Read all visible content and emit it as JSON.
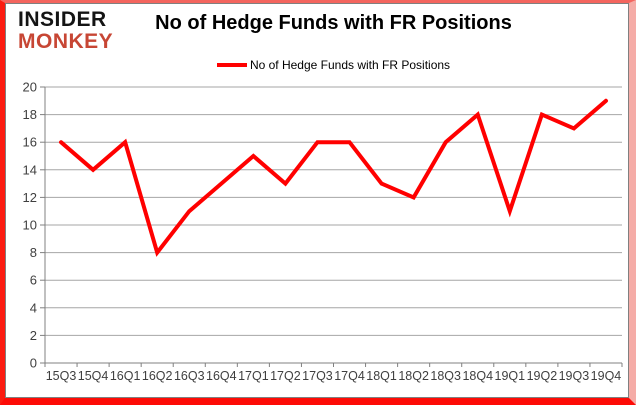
{
  "logo": {
    "top": "INSIDER",
    "bottom": "MONKEY"
  },
  "title": "No of Hedge Funds with FR Positions",
  "legend": {
    "label": "No of Hedge Funds with FR Positions"
  },
  "chart_data": {
    "type": "line",
    "title": "No of Hedge Funds with FR Positions",
    "categories": [
      "15Q3",
      "15Q4",
      "16Q1",
      "16Q2",
      "16Q3",
      "16Q4",
      "17Q1",
      "17Q2",
      "17Q3",
      "17Q4",
      "18Q1",
      "18Q2",
      "18Q3",
      "18Q4",
      "19Q1",
      "19Q2",
      "19Q3",
      "19Q4"
    ],
    "series": [
      {
        "name": "No of Hedge Funds with FR Positions",
        "color": "#ff0000",
        "values": [
          16,
          14,
          16,
          8,
          11,
          13,
          15,
          13,
          16,
          16,
          13,
          12,
          16,
          18,
          11,
          18,
          17,
          19
        ]
      }
    ],
    "xlabel": "",
    "ylabel": "",
    "ylim": [
      0,
      20
    ],
    "ytick_step": 2,
    "grid": true,
    "legend_position": "top-center",
    "colors": {
      "line": "#ff0000",
      "gridline": "#a6a6a6",
      "axis": "#808080",
      "tick_label": "#3f3f3f"
    }
  },
  "frame": {
    "border_color": "#fd0b06",
    "inner_border_color": "#808080",
    "background": "#ffffff",
    "logo_accent": "#c74634"
  }
}
